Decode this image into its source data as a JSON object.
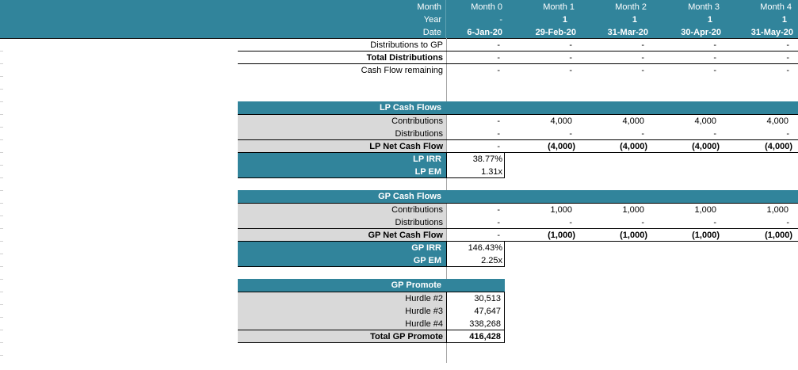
{
  "header": {
    "row_labels": [
      "Month",
      "Year",
      "Date"
    ],
    "columns": [
      {
        "month": "Month 0",
        "year": "-",
        "date": "6-Jan-20"
      },
      {
        "month": "Month 1",
        "year": "1",
        "date": "29-Feb-20"
      },
      {
        "month": "Month 2",
        "year": "1",
        "date": "31-Mar-20"
      },
      {
        "month": "Month 3",
        "year": "1",
        "date": "30-Apr-20"
      },
      {
        "month": "Month 4",
        "year": "1",
        "date": "31-May-20"
      }
    ]
  },
  "top_rows": [
    {
      "label": "Distributions to GP",
      "values": [
        "-",
        "-",
        "-",
        "-",
        "-"
      ]
    },
    {
      "label": "Total Distributions",
      "values": [
        "-",
        "-",
        "-",
        "-",
        "-"
      ]
    },
    {
      "label": "Cash Flow remaining",
      "values": [
        "-",
        "-",
        "-",
        "-",
        "-"
      ]
    }
  ],
  "lp": {
    "title": "LP Cash Flows",
    "rows": [
      {
        "label": "Contributions",
        "values": [
          "-",
          "4,000",
          "4,000",
          "4,000",
          "4,000"
        ]
      },
      {
        "label": "Distributions",
        "values": [
          "-",
          "-",
          "-",
          "-",
          "-"
        ]
      },
      {
        "label": "LP Net Cash Flow",
        "values": [
          "-",
          "(4,000)",
          "(4,000)",
          "(4,000)",
          "(4,000)"
        ]
      }
    ],
    "irr_label": "LP IRR",
    "irr": "38.77%",
    "em_label": "LP EM",
    "em": "1.31x"
  },
  "gp": {
    "title": "GP Cash Flows",
    "rows": [
      {
        "label": "Contributions",
        "values": [
          "-",
          "1,000",
          "1,000",
          "1,000",
          "1,000"
        ]
      },
      {
        "label": "Distributions",
        "values": [
          "-",
          "-",
          "-",
          "-",
          "-"
        ]
      },
      {
        "label": "GP Net Cash Flow",
        "values": [
          "-",
          "(1,000)",
          "(1,000)",
          "(1,000)",
          "(1,000)"
        ]
      }
    ],
    "irr_label": "GP IRR",
    "irr": "146.43%",
    "em_label": "GP EM",
    "em": "2.25x"
  },
  "promote": {
    "title": "GP Promote",
    "rows": [
      {
        "label": "Hurdle #2",
        "value": "30,513"
      },
      {
        "label": "Hurdle #3",
        "value": "47,647"
      },
      {
        "label": "Hurdle #4",
        "value": "338,268"
      }
    ],
    "total_label": "Total GP Promote",
    "total": "416,428"
  },
  "colors": {
    "accent": "#31849b",
    "label_fill": "#d9d9d9"
  }
}
